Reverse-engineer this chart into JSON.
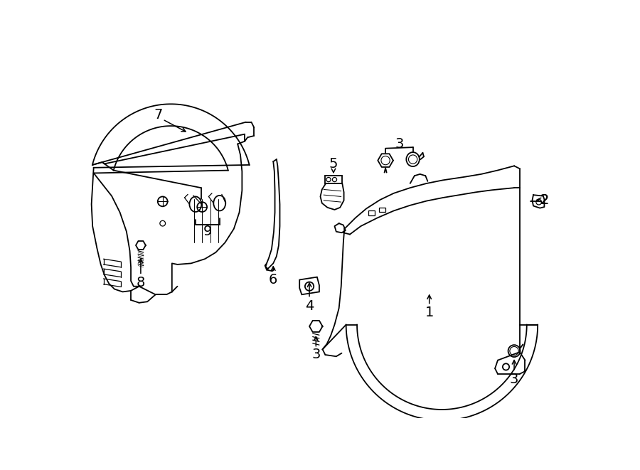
{
  "background_color": "#ffffff",
  "line_color": "#000000",
  "fig_width": 9.0,
  "fig_height": 6.61,
  "dpi": 100,
  "lw": 1.3
}
